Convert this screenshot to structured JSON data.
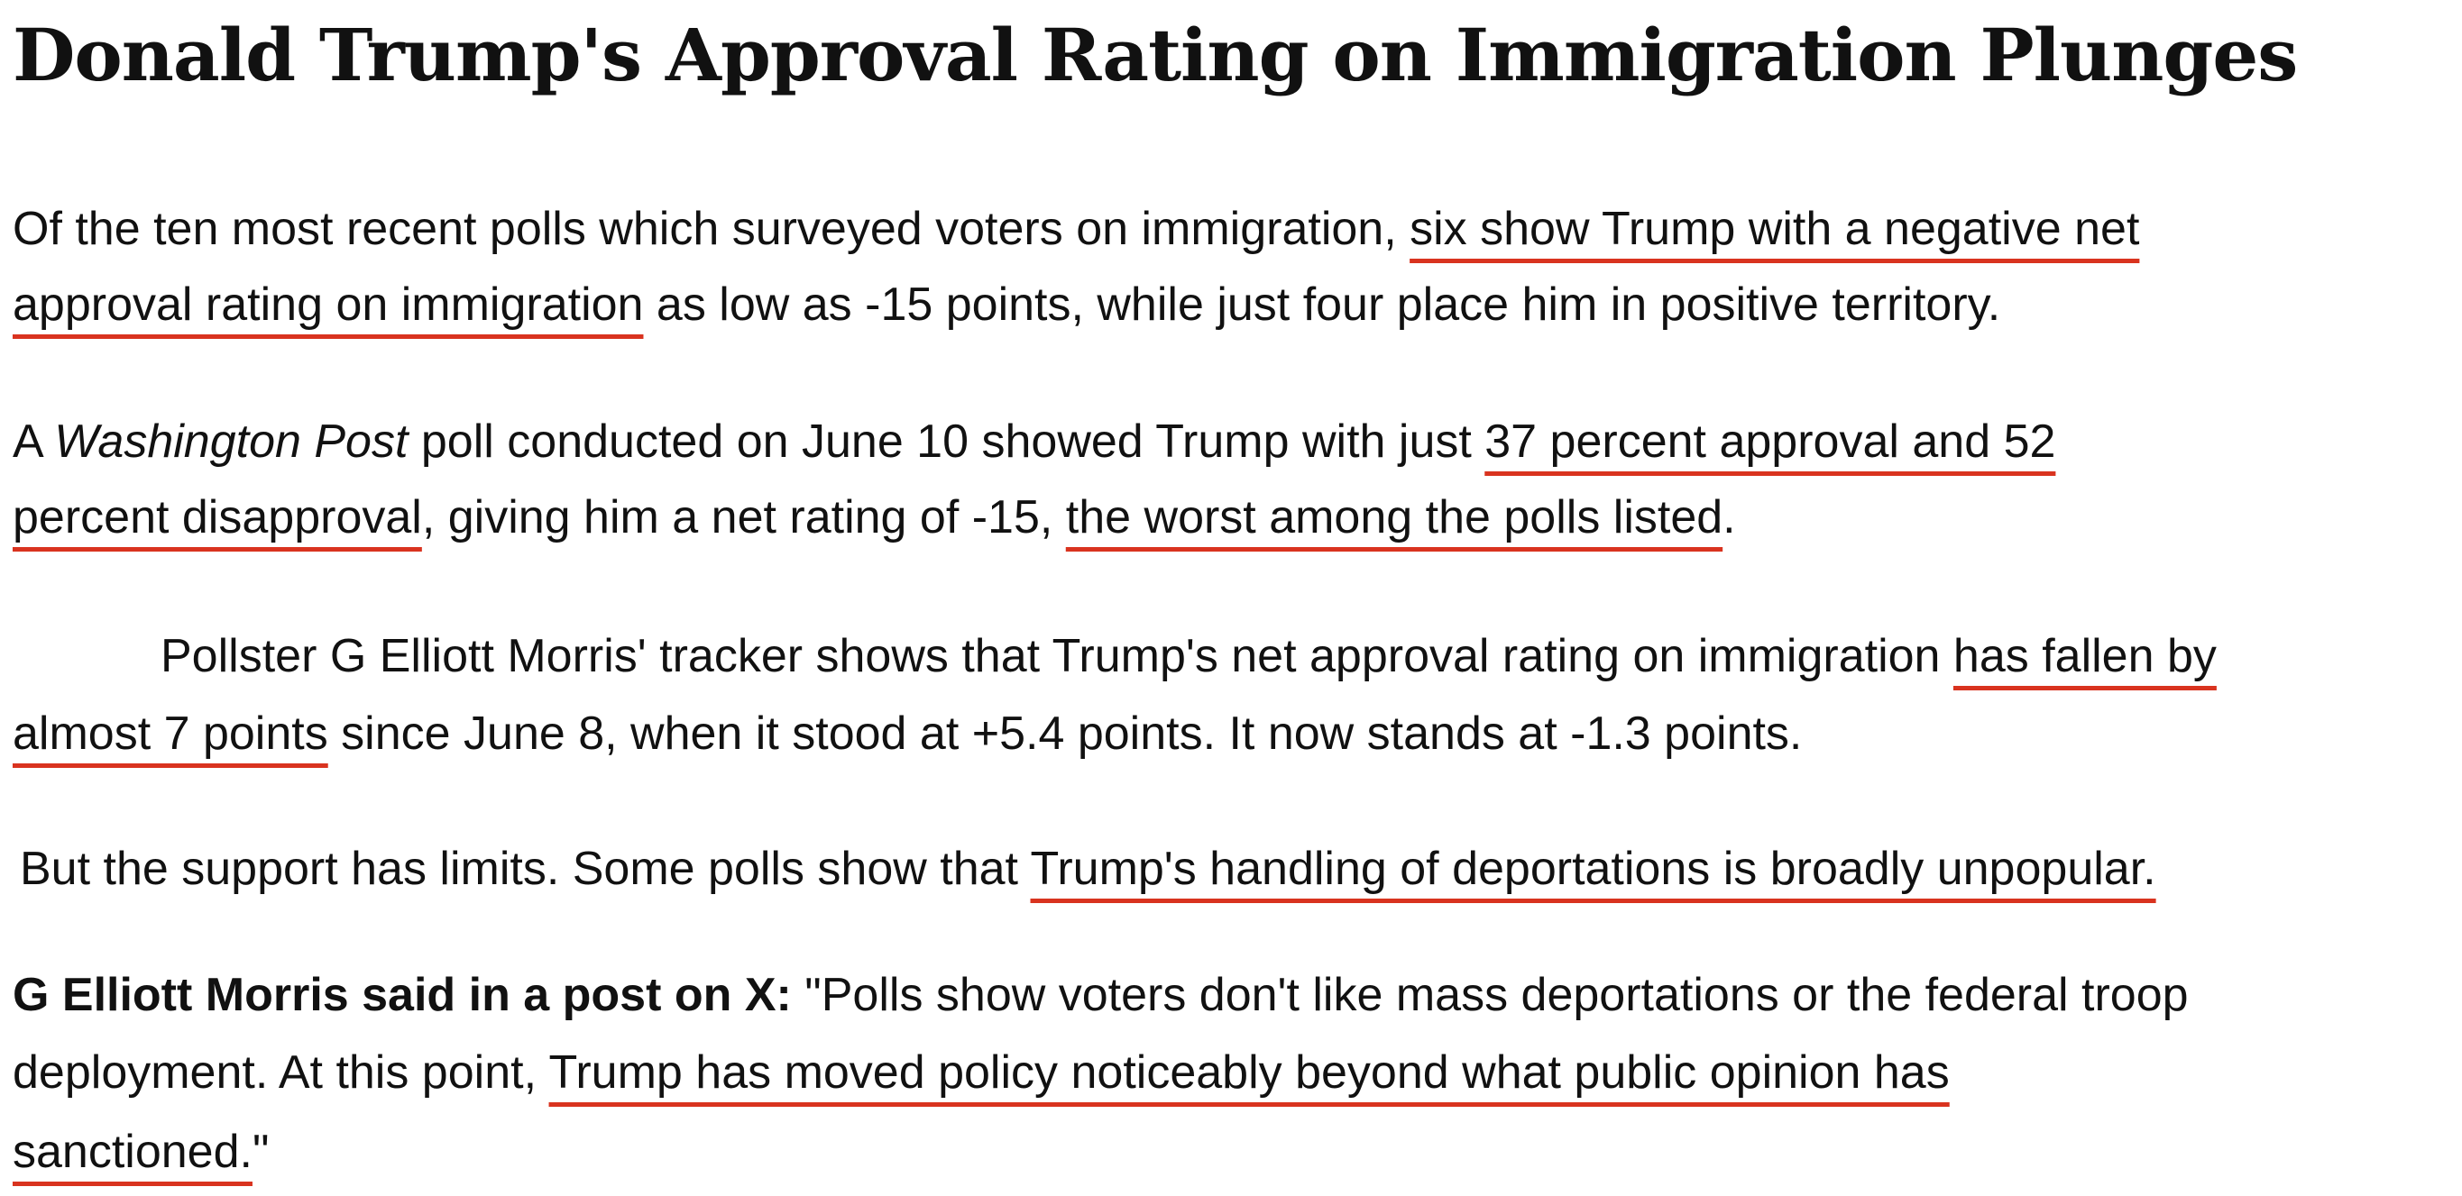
{
  "title": "Donald Trump's Approval Rating on Immigration Plunges",
  "paragraphs": [
    {
      "lines": [
        [
          {
            "text": "Of the ten most recent polls which surveyed voters on immigration, "
          },
          {
            "text": "six show Trump with a negative net",
            "underline": true
          }
        ],
        [
          {
            "text": "approval rating on immigration",
            "underline": true
          },
          {
            "text": " as low as -15 points, while just four place him in positive territory."
          }
        ]
      ]
    },
    {
      "lines": [
        [
          {
            "text": "A "
          },
          {
            "text": "Washington Post",
            "italic": true
          },
          {
            "text": " poll conducted on June 10 showed Trump with just "
          },
          {
            "text": "37 percent approval and 52",
            "underline": true
          }
        ],
        [
          {
            "text": "percent disapproval",
            "underline": true
          },
          {
            "text": ", giving him a net rating of -15, "
          },
          {
            "text": "the worst among the polls listed",
            "underline": true
          },
          {
            "text": "."
          }
        ]
      ]
    },
    {
      "lines": [
        [
          {
            "text": "Pollster G Elliott Morris' tracker shows that Trump's net approval rating on immigration "
          },
          {
            "text": "has fallen by",
            "underline": true
          }
        ],
        [
          {
            "text": "almost 7 points",
            "underline": true
          },
          {
            "text": " since June 8, when it stood at +5.4 points. It now stands at -1.3 points."
          }
        ]
      ]
    },
    {
      "lines": [
        [
          {
            "text": "But the support has limits. Some polls show that "
          },
          {
            "text": "Trump's handling of deportations is broadly unpopular.",
            "underline": true
          }
        ]
      ]
    },
    {
      "lines": [
        [
          {
            "text": "G Elliott Morris said in a post on X:",
            "bold": true
          },
          {
            "text": " \"Polls show voters don't like mass deportations or the federal troop"
          }
        ],
        [
          {
            "text": "deployment. At this point, "
          },
          {
            "text": "Trump has moved policy noticeably beyond what public opinion has",
            "underline": true
          }
        ],
        [
          {
            "text": "sanctioned.",
            "underline": true
          },
          {
            "text": "\""
          }
        ]
      ]
    }
  ]
}
